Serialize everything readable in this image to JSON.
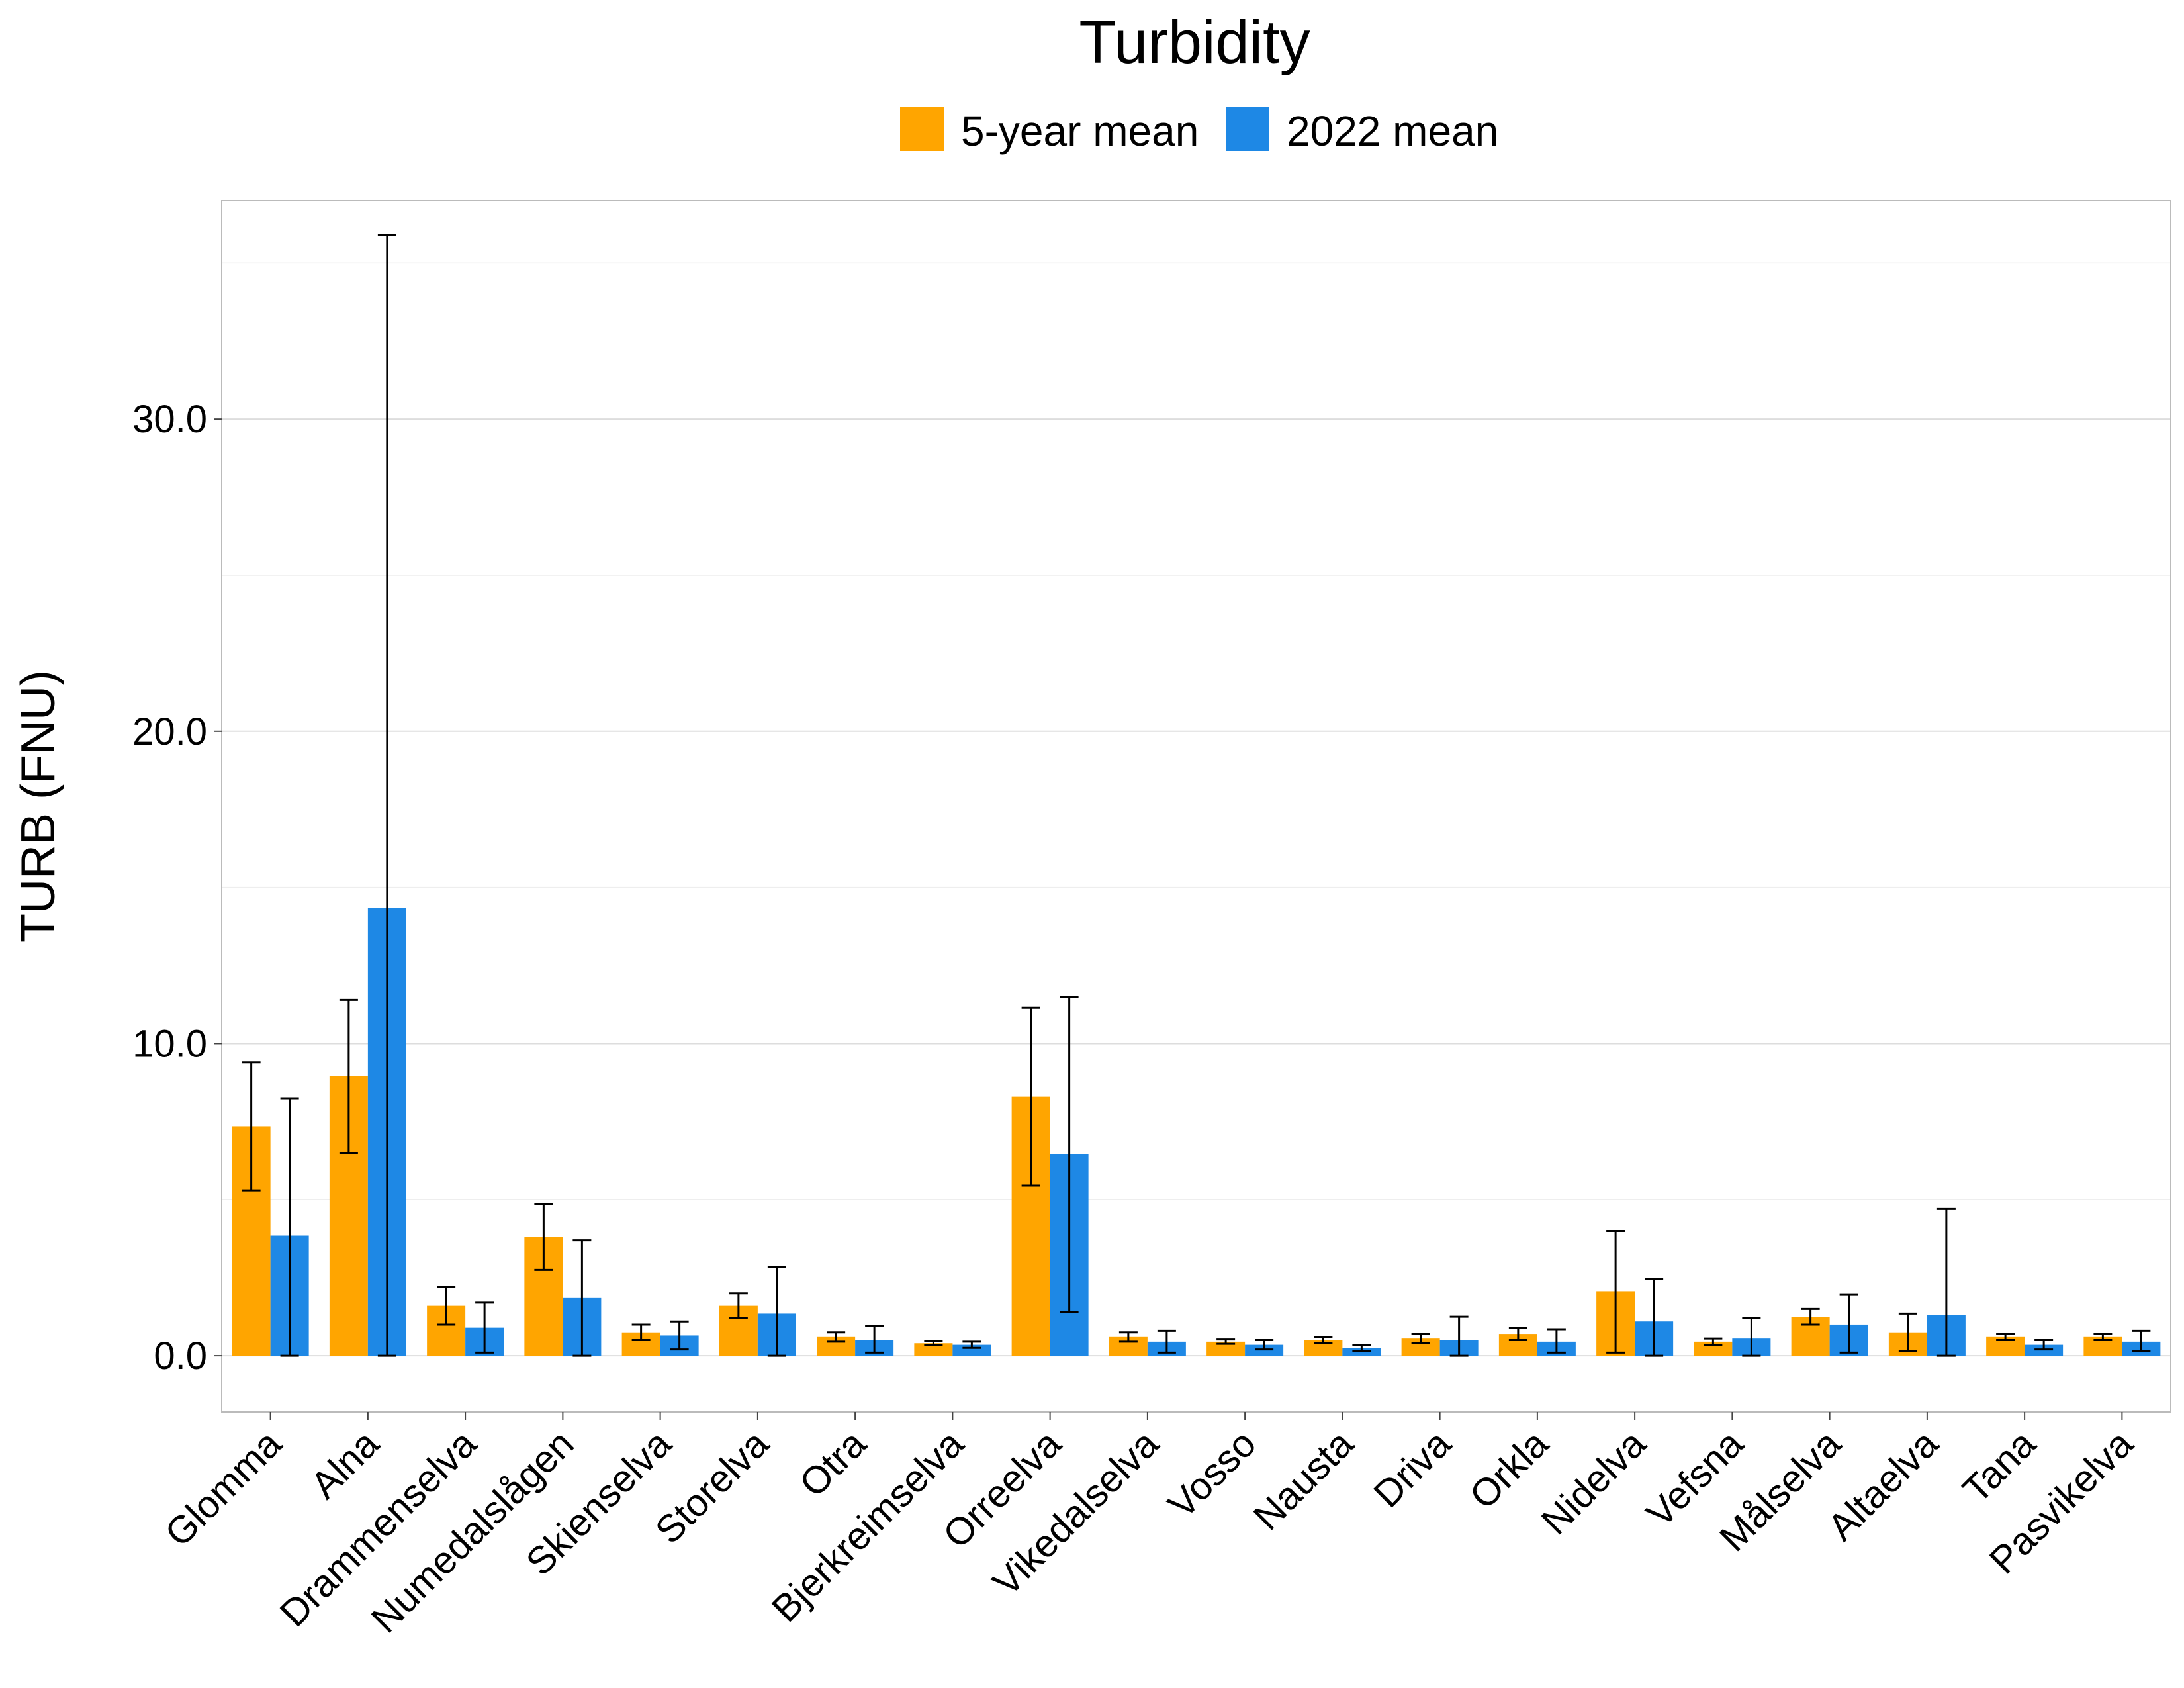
{
  "chart_data": {
    "type": "bar",
    "title": "Turbidity",
    "xlabel": "",
    "ylabel": "TURB (FNU)",
    "ylim": [
      -1.8,
      37
    ],
    "yticks": [
      0,
      10,
      20,
      30
    ],
    "ytick_labels": [
      "0.0",
      "10.0",
      "20.0",
      "30.0"
    ],
    "grid": true,
    "legend_position": "top",
    "categories": [
      "Glomma",
      "Alna",
      "Drammenselva",
      "Numedalslågen",
      "Skienselva",
      "Storelva",
      "Otra",
      "Bjerkreimselva",
      "Orreelva",
      "Vikedalselva",
      "Vosso",
      "Nausta",
      "Driva",
      "Orkla",
      "Nidelva",
      "Vefsna",
      "Målselva",
      "Altaelva",
      "Tana",
      "Pasvikelva"
    ],
    "series": [
      {
        "name": "5-year mean",
        "color": "#FFA500",
        "values": [
          7.35,
          8.95,
          1.6,
          3.8,
          0.75,
          1.6,
          0.6,
          0.4,
          8.3,
          0.6,
          0.45,
          0.5,
          0.55,
          0.7,
          2.05,
          0.45,
          1.25,
          0.75,
          0.6,
          0.6
        ],
        "error_low": [
          5.3,
          6.5,
          1.0,
          2.75,
          0.5,
          1.2,
          0.45,
          0.33,
          5.45,
          0.45,
          0.38,
          0.4,
          0.4,
          0.5,
          0.1,
          0.35,
          1.0,
          0.15,
          0.5,
          0.5
        ],
        "error_high": [
          9.4,
          11.4,
          2.2,
          4.85,
          1.0,
          2.0,
          0.75,
          0.47,
          11.15,
          0.75,
          0.52,
          0.6,
          0.7,
          0.9,
          4.0,
          0.55,
          1.5,
          1.35,
          0.7,
          0.7
        ]
      },
      {
        "name": "2022 mean",
        "color": "#1E88E5",
        "values": [
          3.85,
          14.35,
          0.9,
          1.85,
          0.65,
          1.35,
          0.5,
          0.35,
          6.45,
          0.45,
          0.35,
          0.25,
          0.5,
          0.45,
          1.1,
          0.55,
          1.0,
          1.3,
          0.35,
          0.45
        ],
        "error_low": [
          0.0,
          0.0,
          0.1,
          0.0,
          0.2,
          0.0,
          0.1,
          0.25,
          1.4,
          0.1,
          0.2,
          0.15,
          0.0,
          0.1,
          0.0,
          0.0,
          0.1,
          0.0,
          0.2,
          0.15
        ],
        "error_high": [
          8.25,
          35.9,
          1.7,
          3.7,
          1.1,
          2.85,
          0.95,
          0.45,
          11.5,
          0.8,
          0.5,
          0.35,
          1.25,
          0.85,
          2.45,
          1.2,
          1.95,
          4.7,
          0.5,
          0.8
        ]
      }
    ]
  }
}
